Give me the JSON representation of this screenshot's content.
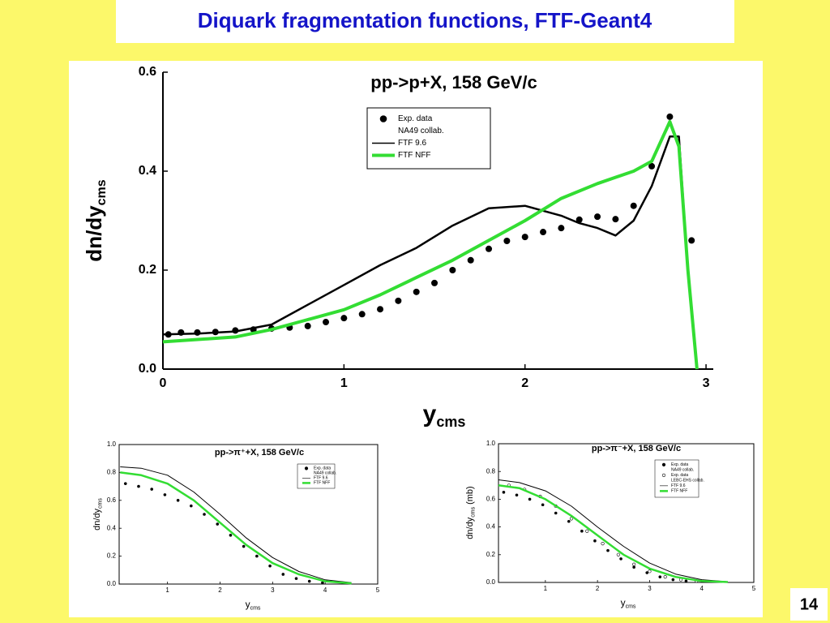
{
  "slide": {
    "title": "Diquark fragmentation functions, FTF-Geant4",
    "page_number": "14"
  },
  "chart_data": [
    {
      "type": "line",
      "title": "pp->p+X, 158 GeV/c",
      "xlabel": "y",
      "xlabel_sub": "cms",
      "ylabel": "dn/dy",
      "ylabel_sub": "cms",
      "xlim": [
        0,
        3.04
      ],
      "ylim": [
        0,
        0.6
      ],
      "xticks": [
        0,
        1,
        2,
        3
      ],
      "yticks": [
        {
          "value": 0,
          "label": "0.0"
        },
        0.2,
        0.4,
        0.6
      ],
      "series": [
        {
          "name": "Exp. data",
          "name_sub": "NA49 collab.",
          "style": "markers",
          "marker": "filled",
          "color": "#000000",
          "x": [
            0.03,
            0.1,
            0.19,
            0.29,
            0.4,
            0.5,
            0.6,
            0.7,
            0.8,
            0.9,
            1.0,
            1.1,
            1.2,
            1.3,
            1.4,
            1.5,
            1.6,
            1.7,
            1.8,
            1.9,
            2.0,
            2.1,
            2.2,
            2.3,
            2.4,
            2.5,
            2.6,
            2.7,
            2.8,
            2.92
          ],
          "values": [
            0.07,
            0.074,
            0.074,
            0.075,
            0.078,
            0.08,
            0.082,
            0.084,
            0.087,
            0.095,
            0.103,
            0.111,
            0.121,
            0.138,
            0.156,
            0.174,
            0.2,
            0.22,
            0.243,
            0.259,
            0.267,
            0.277,
            0.285,
            0.302,
            0.308,
            0.303,
            0.33,
            0.41,
            0.51,
            0.26
          ]
        },
        {
          "name": "FTF 9.6",
          "style": "line",
          "color": "#000000",
          "x": [
            0,
            0.2,
            0.4,
            0.6,
            0.8,
            1.0,
            1.2,
            1.4,
            1.6,
            1.8,
            2.0,
            2.1,
            2.2,
            2.3,
            2.4,
            2.5,
            2.6,
            2.7,
            2.8,
            2.85,
            2.9,
            2.95
          ],
          "values": [
            0.07,
            0.072,
            0.076,
            0.09,
            0.13,
            0.17,
            0.21,
            0.245,
            0.29,
            0.325,
            0.33,
            0.32,
            0.31,
            0.295,
            0.285,
            0.27,
            0.3,
            0.37,
            0.47,
            0.47,
            0.2,
            0
          ]
        },
        {
          "name": "FTF NFF",
          "style": "line",
          "color": "#33dd33",
          "x": [
            0,
            0.2,
            0.4,
            0.6,
            0.8,
            1.0,
            1.2,
            1.4,
            1.6,
            1.8,
            2.0,
            2.2,
            2.4,
            2.6,
            2.7,
            2.8,
            2.85,
            2.9,
            2.95
          ],
          "values": [
            0.055,
            0.06,
            0.065,
            0.08,
            0.1,
            0.12,
            0.15,
            0.185,
            0.22,
            0.26,
            0.3,
            0.345,
            0.375,
            0.4,
            0.42,
            0.5,
            0.45,
            0.2,
            0
          ]
        }
      ]
    },
    {
      "type": "line",
      "title": "pp->π⁺+X, 158 GeV/c",
      "xlabel": "y",
      "xlabel_sub": "cms",
      "ylabel": "dn/dy",
      "ylabel_sub": "cms",
      "xlim": [
        0.08,
        5
      ],
      "ylim": [
        0,
        1
      ],
      "xticks": [
        1,
        2,
        3,
        4,
        5
      ],
      "yticks": [
        {
          "value": 0,
          "label": "0.0"
        },
        0.2,
        0.4,
        0.6,
        0.8,
        {
          "value": 1,
          "label": "1.0"
        }
      ],
      "series": [
        {
          "name": "Exp. data",
          "name_sub": "NA49 collab.",
          "style": "markers",
          "marker": "filled",
          "color": "#000000",
          "x": [
            0.2,
            0.45,
            0.7,
            0.95,
            1.2,
            1.45,
            1.7,
            1.95,
            2.2,
            2.45,
            2.7,
            2.95,
            3.2,
            3.45,
            3.7,
            3.95
          ],
          "values": [
            0.72,
            0.7,
            0.68,
            0.64,
            0.6,
            0.56,
            0.5,
            0.43,
            0.35,
            0.27,
            0.2,
            0.13,
            0.07,
            0.04,
            0.02,
            0.01
          ]
        },
        {
          "name": "FTF 9.6",
          "style": "line",
          "color": "#000000",
          "x": [
            0.1,
            0.5,
            1.0,
            1.5,
            2.0,
            2.5,
            3.0,
            3.5,
            4.0,
            4.5
          ],
          "values": [
            0.84,
            0.83,
            0.78,
            0.66,
            0.5,
            0.33,
            0.19,
            0.09,
            0.03,
            0.01
          ]
        },
        {
          "name": "FTF NFF",
          "style": "line",
          "color": "#33dd33",
          "x": [
            0.1,
            0.5,
            1.0,
            1.5,
            2.0,
            2.5,
            3.0,
            3.5,
            4.0,
            4.5
          ],
          "values": [
            0.8,
            0.78,
            0.72,
            0.6,
            0.44,
            0.28,
            0.15,
            0.07,
            0.02,
            0.005
          ]
        }
      ]
    },
    {
      "type": "line",
      "title": "pp->π⁻+X, 158 GeV/c",
      "xlabel": "y",
      "xlabel_sub": "cms",
      "ylabel": "dn/dy",
      "ylabel_sub": "cms",
      "ylabel_suffix": "(mb)",
      "xlim": [
        0.1,
        5
      ],
      "ylim": [
        0,
        1
      ],
      "xticks": [
        1,
        2,
        3,
        4,
        5
      ],
      "yticks": [
        {
          "value": 0,
          "label": "0.0"
        },
        0.2,
        0.4,
        0.6,
        0.8,
        {
          "value": 1,
          "label": "1.0"
        }
      ],
      "series": [
        {
          "name": "Exp. data",
          "name_sub": "NA49 collab.",
          "style": "markers",
          "marker": "filled",
          "color": "#000000",
          "x": [
            0.2,
            0.45,
            0.7,
            0.95,
            1.2,
            1.45,
            1.7,
            1.95,
            2.2,
            2.45,
            2.7,
            2.95,
            3.2,
            3.45,
            3.7
          ],
          "values": [
            0.65,
            0.63,
            0.6,
            0.56,
            0.5,
            0.44,
            0.37,
            0.3,
            0.23,
            0.17,
            0.11,
            0.07,
            0.04,
            0.02,
            0.01
          ]
        },
        {
          "name": "Exp. data",
          "name_sub": "LEBC-EHS collab.",
          "style": "markers",
          "marker": "open",
          "color": "#000000",
          "x": [
            0.3,
            0.6,
            0.9,
            1.2,
            1.5,
            1.8,
            2.1,
            2.4,
            2.7,
            3.0,
            3.3,
            3.6,
            3.9
          ],
          "values": [
            0.7,
            0.67,
            0.62,
            0.55,
            0.46,
            0.37,
            0.28,
            0.2,
            0.13,
            0.08,
            0.04,
            0.02,
            0.01
          ]
        },
        {
          "name": "FTF 9.6",
          "style": "line",
          "color": "#000000",
          "x": [
            0.1,
            0.5,
            1.0,
            1.5,
            2.0,
            2.5,
            3.0,
            3.5,
            4.0,
            4.5
          ],
          "values": [
            0.74,
            0.72,
            0.66,
            0.55,
            0.4,
            0.26,
            0.14,
            0.06,
            0.02,
            0.005
          ]
        },
        {
          "name": "FTF NFF",
          "style": "line",
          "color": "#33dd33",
          "x": [
            0.1,
            0.5,
            1.0,
            1.5,
            2.0,
            2.5,
            3.0,
            3.5,
            4.0,
            4.5
          ],
          "values": [
            0.7,
            0.68,
            0.6,
            0.48,
            0.34,
            0.2,
            0.1,
            0.04,
            0.01,
            0.003
          ]
        }
      ]
    }
  ]
}
